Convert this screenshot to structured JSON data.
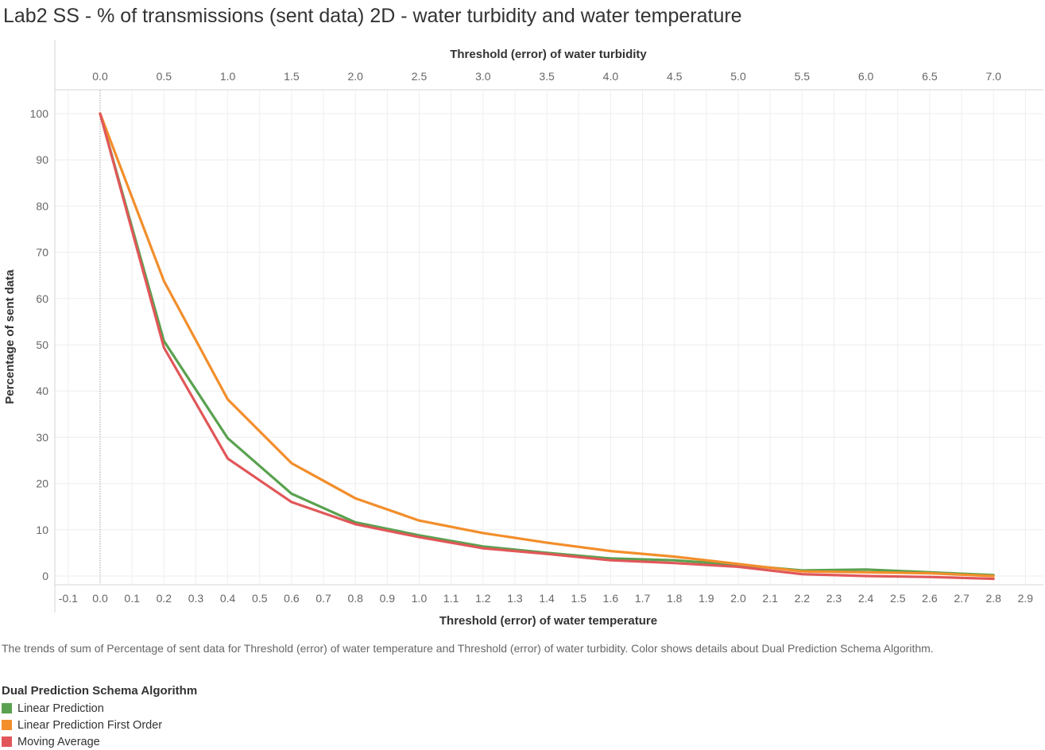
{
  "title": "Lab2 SS - % of transmissions (sent data) 2D - water turbidity and water temperature",
  "caption": "The trends of sum of Percentage of sent data for Threshold (error) of water temperature and Threshold (error) of water turbidity.  Color shows details about Dual Prediction Schema Algorithm.",
  "legend": {
    "title": "Dual Prediction Schema Algorithm",
    "items": [
      {
        "label": "Linear Prediction",
        "color": "#59a14f"
      },
      {
        "label": "Linear Prediction First Order",
        "color": "#f28e2b"
      },
      {
        "label": "Moving Average",
        "color": "#e15759"
      }
    ]
  },
  "chart_data": {
    "type": "line",
    "title": "Lab2 SS - % of transmissions (sent data) 2D - water turbidity and water temperature",
    "xlabel": "Threshold (error) of water temperature",
    "x2label": "Threshold (error) of water turbidity",
    "ylabel": "Percentage of sent data",
    "xlim": [
      -0.1,
      2.9
    ],
    "ylim": [
      0,
      100
    ],
    "x_ticks": [
      "-0.1",
      "0.0",
      "0.1",
      "0.2",
      "0.3",
      "0.4",
      "0.5",
      "0.6",
      "0.7",
      "0.8",
      "0.9",
      "1.0",
      "1.1",
      "1.2",
      "1.3",
      "1.4",
      "1.5",
      "1.6",
      "1.7",
      "1.8",
      "1.9",
      "2.0",
      "2.1",
      "2.2",
      "2.3",
      "2.4",
      "2.5",
      "2.6",
      "2.7",
      "2.8",
      "2.9"
    ],
    "x2_ticks": [
      "0.0",
      "0.5",
      "1.0",
      "1.5",
      "2.0",
      "2.5",
      "3.0",
      "3.5",
      "4.0",
      "4.5",
      "5.0",
      "5.5",
      "6.0",
      "6.5",
      "7.0"
    ],
    "y_ticks": [
      "0",
      "10",
      "20",
      "30",
      "40",
      "50",
      "60",
      "70",
      "80",
      "90",
      "100"
    ],
    "x": [
      0.0,
      0.2,
      0.4,
      0.6,
      0.8,
      1.0,
      1.2,
      1.4,
      1.6,
      1.8,
      2.0,
      2.2,
      2.4,
      2.6,
      2.8
    ],
    "series": [
      {
        "name": "Linear Prediction",
        "color": "#59a14f",
        "values": [
          100,
          50.8,
          29.8,
          17.8,
          11.6,
          8.8,
          6.4,
          5.0,
          3.8,
          3.4,
          2.4,
          1.2,
          1.4,
          0.8,
          0.2
        ]
      },
      {
        "name": "Linear Prediction First Order",
        "color": "#f28e2b",
        "values": [
          100,
          63.8,
          38.2,
          24.4,
          16.8,
          12.0,
          9.3,
          7.2,
          5.4,
          4.2,
          2.6,
          1.0,
          0.8,
          0.6,
          0.0
        ]
      },
      {
        "name": "Moving Average",
        "color": "#e15759",
        "values": [
          100,
          49.4,
          25.4,
          16.0,
          11.2,
          8.4,
          6.0,
          4.8,
          3.4,
          2.8,
          2.0,
          0.4,
          0.0,
          -0.2,
          -0.6
        ]
      }
    ],
    "grid": true,
    "legend_position": "bottom-left"
  }
}
